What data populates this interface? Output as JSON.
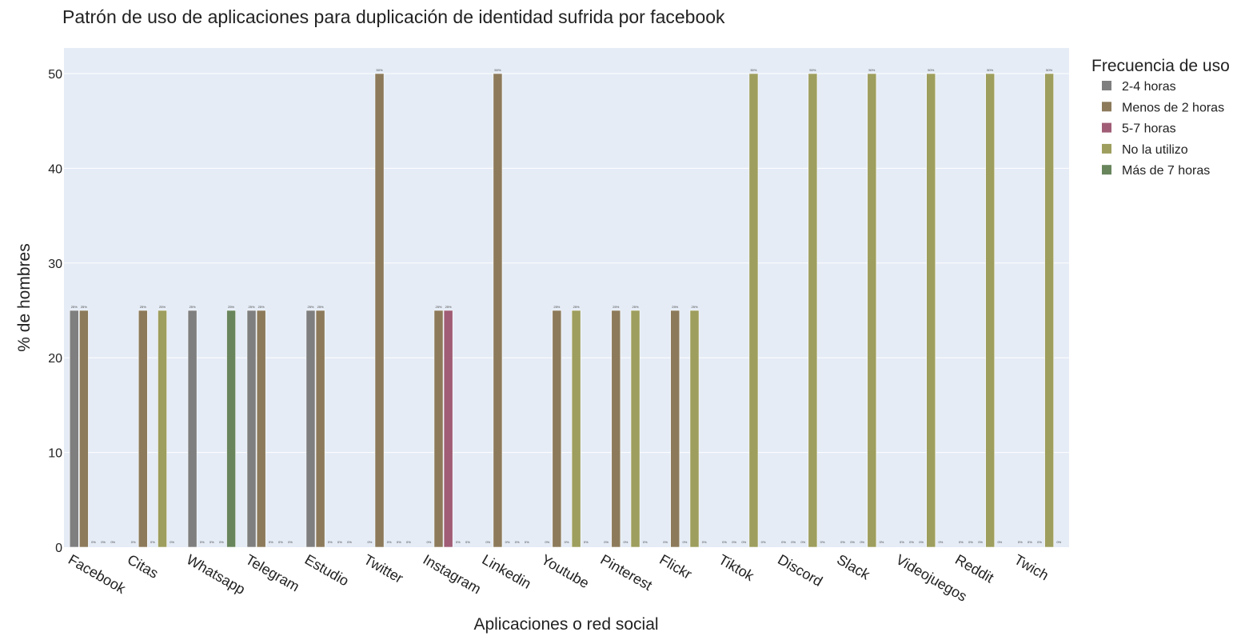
{
  "chart_data": {
    "type": "bar",
    "title": "Patrón de uso de aplicaciones para duplicación de identidad sufrida por facebook",
    "xlabel": "Aplicaciones o red social",
    "ylabel": "% de hombres",
    "ylim": [
      0,
      52.7
    ],
    "yticks": [
      0,
      10,
      20,
      30,
      40,
      50
    ],
    "grid": true,
    "legend_title": "Frecuencia de uso",
    "legend_position": "right",
    "value_suffix": "%",
    "categories": [
      "Facebook",
      "Citas",
      "Whatsapp",
      "Telegram",
      "Estudio",
      "Twitter",
      "Instagram",
      "Linkedin",
      "Youtube",
      "Pinterest",
      "Flickr",
      "Tiktok",
      "Discord",
      "Slack",
      "Videojuegos",
      "Reddit",
      "Twich"
    ],
    "series": [
      {
        "name": "2-4 horas",
        "color": "#7f7f7f",
        "values": [
          25,
          0,
          25,
          25,
          25,
          0,
          0,
          0,
          0,
          0,
          0,
          0,
          0,
          0,
          0,
          0,
          0
        ]
      },
      {
        "name": "Menos de 2 horas",
        "color": "#8c7a5b",
        "values": [
          25,
          25,
          0,
          25,
          25,
          50,
          25,
          50,
          25,
          25,
          25,
          0,
          0,
          0,
          0,
          0,
          0
        ]
      },
      {
        "name": "5-7 horas",
        "color": "#a05d75",
        "values": [
          0,
          0,
          0,
          0,
          0,
          0,
          25,
          0,
          0,
          0,
          0,
          0,
          0,
          0,
          0,
          0,
          0
        ]
      },
      {
        "name": "No la utilizo",
        "color": "#9e9e5e",
        "values": [
          0,
          25,
          0,
          0,
          0,
          0,
          0,
          0,
          25,
          25,
          25,
          50,
          50,
          50,
          50,
          50,
          50
        ]
      },
      {
        "name": "Más de 7 horas",
        "color": "#68855c",
        "values": [
          0,
          0,
          25,
          0,
          0,
          0,
          0,
          0,
          0,
          0,
          0,
          0,
          0,
          0,
          0,
          0,
          0
        ]
      }
    ]
  }
}
